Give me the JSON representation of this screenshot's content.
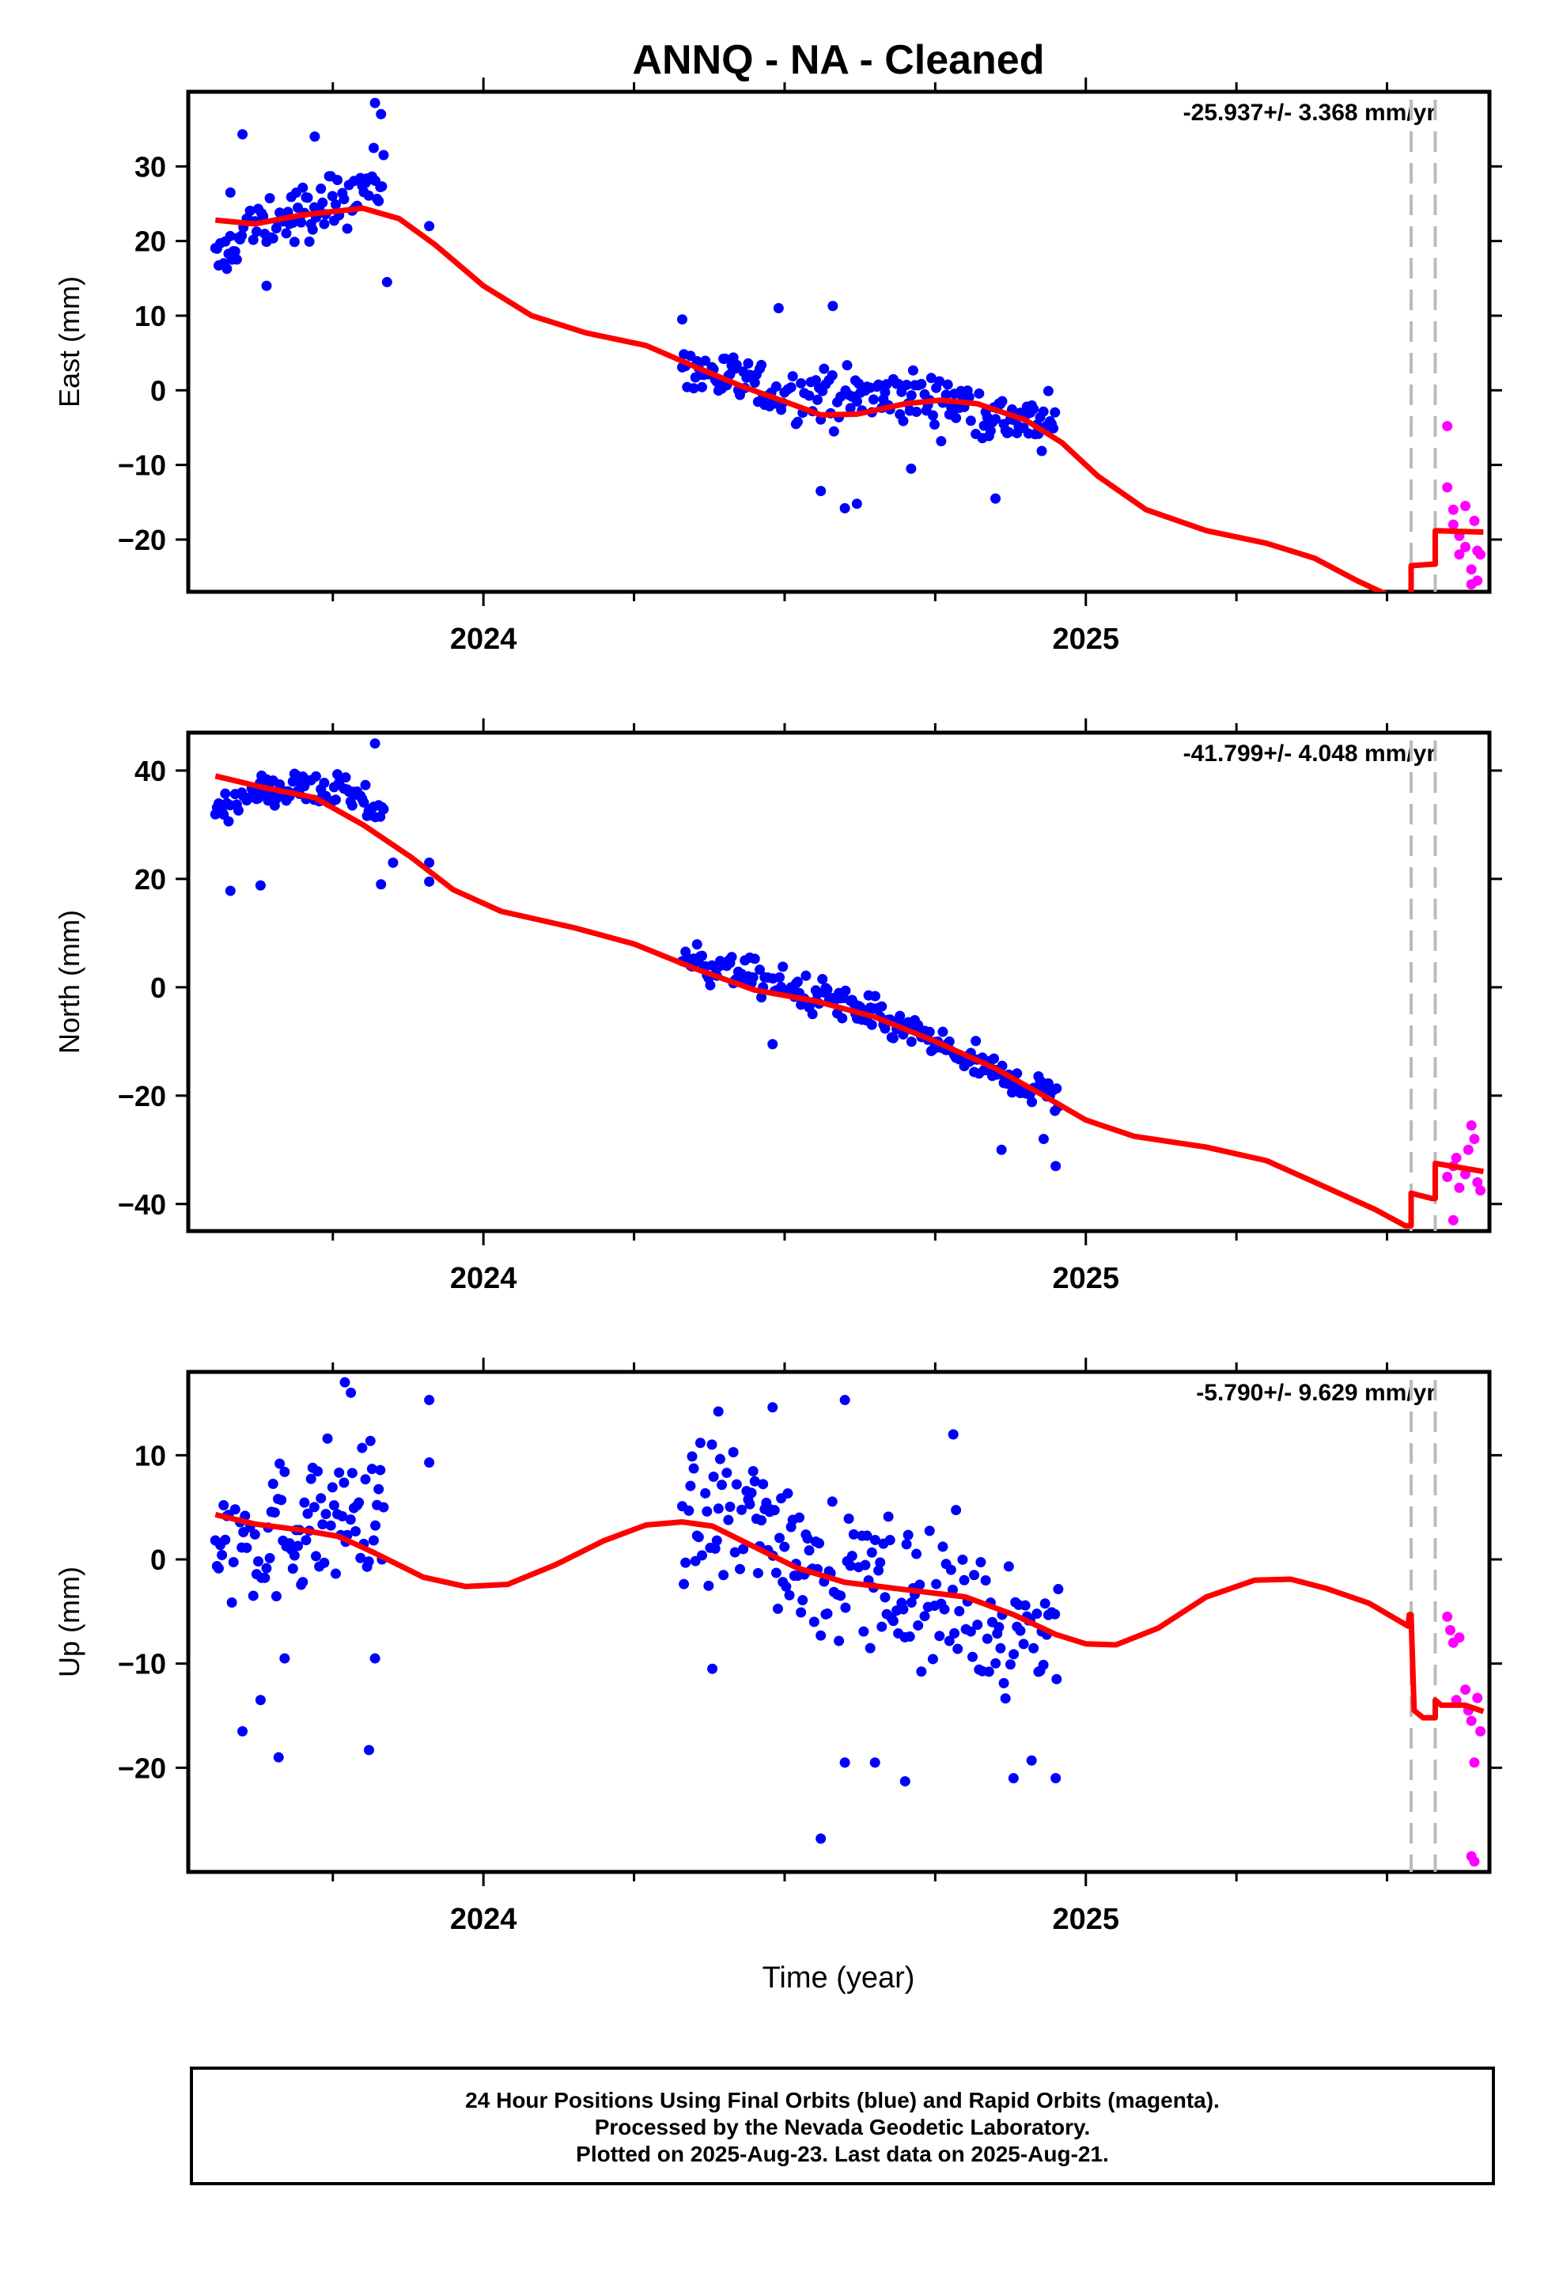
{
  "title": "ANNQ  - NA - Cleaned",
  "xlabel": "Time (year)",
  "colors": {
    "final": "#0000ff",
    "rapid": "#ff00ff",
    "model": "#ff0000",
    "break": "#bbbbbb"
  },
  "footer": {
    "line1": "24 Hour Positions Using Final Orbits (blue) and Rapid Orbits (magenta).",
    "line2": "Processed by the Nevada Geodetic Laboratory.",
    "line3": "Plotted on 2025-Aug-23. Last data on 2025-Aug-21."
  },
  "chart_data": [
    {
      "type": "scatter",
      "component": "East",
      "ylabel": "East (mm)",
      "rate": "-25.937+/- 3.368 mm/yr",
      "xlim": [
        2023.51,
        2025.67
      ],
      "ylim": [
        -27,
        40
      ],
      "xticks": [
        2024,
        2025
      ],
      "yticks": [
        -20,
        -10,
        0,
        10,
        20,
        30
      ],
      "breaks": [
        2025.54,
        2025.58
      ],
      "final_segments": [
        {
          "t0": 2023.555,
          "t1": 2023.835,
          "pts": [
            [
              2023.56,
              17
            ],
            [
              2023.6,
              21
            ],
            [
              2023.65,
              22.5
            ],
            [
              2023.7,
              23.5
            ],
            [
              2023.75,
              25
            ],
            [
              2023.8,
              27.5
            ],
            [
              2023.83,
              28
            ]
          ],
          "spread": 3.5
        },
        {
          "t0": 2024.33,
          "t1": 2024.955,
          "pts": [
            [
              2024.33,
              4
            ],
            [
              2024.4,
              1.5
            ],
            [
              2024.5,
              -0.5
            ],
            [
              2024.6,
              -1
            ],
            [
              2024.7,
              -1
            ],
            [
              2024.8,
              -2
            ],
            [
              2024.87,
              -4
            ],
            [
              2024.955,
              -5
            ]
          ],
          "spread": 3.2
        }
      ],
      "final_outliers": [
        [
          2023.6,
          34.3
        ],
        [
          2023.72,
          34
        ],
        [
          2023.82,
          38.5
        ],
        [
          2023.83,
          37
        ],
        [
          2023.84,
          14.5
        ],
        [
          2023.91,
          22
        ],
        [
          2023.58,
          26.5
        ],
        [
          2023.64,
          14
        ],
        [
          2024.33,
          9.5
        ],
        [
          2024.49,
          11
        ],
        [
          2024.58,
          11.3
        ],
        [
          2024.6,
          -15.8
        ],
        [
          2024.62,
          -15.2
        ],
        [
          2024.56,
          -13.5
        ],
        [
          2024.85,
          -14.5
        ],
        [
          2024.71,
          -10.5
        ]
      ],
      "rapid": [
        [
          2025.6,
          -4.8
        ],
        [
          2025.6,
          -13
        ],
        [
          2025.61,
          -16
        ],
        [
          2025.61,
          -18
        ],
        [
          2025.62,
          -22
        ],
        [
          2025.62,
          -19.5
        ],
        [
          2025.63,
          -15.5
        ],
        [
          2025.63,
          -21
        ],
        [
          2025.64,
          -24
        ],
        [
          2025.64,
          -26
        ],
        [
          2025.645,
          -17.5
        ],
        [
          2025.65,
          -21.5
        ],
        [
          2025.65,
          -25.5
        ],
        [
          2025.655,
          -22
        ]
      ],
      "model": [
        [
          2023.555,
          22.8
        ],
        [
          2023.62,
          22.3
        ],
        [
          2023.7,
          23.5
        ],
        [
          2023.8,
          24.4
        ],
        [
          2023.86,
          23
        ],
        [
          2023.92,
          19.5
        ],
        [
          2024.0,
          14
        ],
        [
          2024.08,
          10
        ],
        [
          2024.17,
          7.7
        ],
        [
          2024.27,
          6
        ],
        [
          2024.35,
          3.2
        ],
        [
          2024.43,
          0.5
        ],
        [
          2024.5,
          -1.5
        ],
        [
          2024.56,
          -3.3
        ],
        [
          2024.62,
          -3.2
        ],
        [
          2024.7,
          -1.8
        ],
        [
          2024.76,
          -1.3
        ],
        [
          2024.82,
          -1.8
        ],
        [
          2024.9,
          -4
        ],
        [
          2024.96,
          -7
        ],
        [
          2025.02,
          -11.5
        ],
        [
          2025.1,
          -16
        ],
        [
          2025.2,
          -18.8
        ],
        [
          2025.3,
          -20.5
        ],
        [
          2025.38,
          -22.5
        ],
        [
          2025.45,
          -25.5
        ],
        [
          2025.53,
          -28.5
        ]
      ],
      "model_after_break1": [
        [
          2025.54,
          -23.5
        ],
        [
          2025.575,
          -23.3
        ]
      ],
      "model_after_break2": [
        [
          2025.58,
          -18.8
        ],
        [
          2025.66,
          -19
        ]
      ]
    },
    {
      "type": "scatter",
      "component": "North",
      "ylabel": "North (mm)",
      "rate": "-41.799+/- 4.048 mm/yr",
      "xlim": [
        2023.51,
        2025.67
      ],
      "ylim": [
        -45,
        47
      ],
      "xticks": [
        2024,
        2025
      ],
      "yticks": [
        -40,
        -20,
        0,
        20,
        40
      ],
      "breaks": [
        2025.54,
        2025.58
      ],
      "final_segments": [
        {
          "t0": 2023.555,
          "t1": 2023.835,
          "pts": [
            [
              2023.56,
              33
            ],
            [
              2023.62,
              36
            ],
            [
              2023.7,
              37
            ],
            [
              2023.76,
              36
            ],
            [
              2023.82,
              33
            ]
          ],
          "spread": 2.8
        },
        {
          "t0": 2024.33,
          "t1": 2024.955,
          "pts": [
            [
              2024.33,
              5.5
            ],
            [
              2024.4,
              3.5
            ],
            [
              2024.5,
              0
            ],
            [
              2024.6,
              -3
            ],
            [
              2024.7,
              -8
            ],
            [
              2024.8,
              -13
            ],
            [
              2024.87,
              -17
            ],
            [
              2024.955,
              -20
            ]
          ],
          "spread": 3
        }
      ],
      "final_outliers": [
        [
          2023.58,
          17.8
        ],
        [
          2023.63,
          18.8
        ],
        [
          2023.82,
          45
        ],
        [
          2023.83,
          19
        ],
        [
          2023.85,
          23
        ],
        [
          2023.91,
          19.5
        ],
        [
          2023.91,
          23
        ],
        [
          2024.48,
          -10.5
        ],
        [
          2024.86,
          -30
        ],
        [
          2024.95,
          -33
        ],
        [
          2024.93,
          -28
        ]
      ],
      "rapid": [
        [
          2025.6,
          -35
        ],
        [
          2025.61,
          -33
        ],
        [
          2025.615,
          -31.5
        ],
        [
          2025.62,
          -37
        ],
        [
          2025.63,
          -34.5
        ],
        [
          2025.635,
          -30
        ],
        [
          2025.64,
          -25.5
        ],
        [
          2025.645,
          -28
        ],
        [
          2025.65,
          -36
        ],
        [
          2025.655,
          -37.5
        ],
        [
          2025.61,
          -43
        ]
      ],
      "model": [
        [
          2023.555,
          39
        ],
        [
          2023.63,
          37
        ],
        [
          2023.72,
          35
        ],
        [
          2023.8,
          30
        ],
        [
          2023.88,
          24
        ],
        [
          2023.95,
          18
        ],
        [
          2024.03,
          14
        ],
        [
          2024.15,
          11
        ],
        [
          2024.25,
          8
        ],
        [
          2024.35,
          3.5
        ],
        [
          2024.45,
          -0.5
        ],
        [
          2024.55,
          -2.5
        ],
        [
          2024.65,
          -5.5
        ],
        [
          2024.75,
          -10
        ],
        [
          2024.85,
          -15
        ],
        [
          2024.93,
          -20
        ],
        [
          2025.0,
          -24.5
        ],
        [
          2025.08,
          -27.5
        ],
        [
          2025.2,
          -29.5
        ],
        [
          2025.3,
          -32
        ],
        [
          2025.4,
          -37
        ],
        [
          2025.48,
          -41
        ],
        [
          2025.53,
          -44
        ]
      ],
      "model_after_break1": [
        [
          2025.54,
          -38
        ],
        [
          2025.575,
          -39
        ]
      ],
      "model_after_break2": [
        [
          2025.58,
          -32.5
        ],
        [
          2025.66,
          -34
        ]
      ]
    },
    {
      "type": "scatter",
      "component": "Up",
      "ylabel": "Up (mm)",
      "rate": "-5.790+/- 9.629 mm/yr",
      "xlim": [
        2023.51,
        2025.67
      ],
      "ylim": [
        -30,
        18
      ],
      "xticks": [
        2024,
        2025
      ],
      "yticks": [
        -20,
        -10,
        0,
        10
      ],
      "breaks": [
        2025.54,
        2025.58
      ],
      "final_segments": [
        {
          "t0": 2023.555,
          "t1": 2023.835,
          "pts": [
            [
              2023.56,
              1
            ],
            [
              2023.65,
              2.5
            ],
            [
              2023.72,
              4
            ],
            [
              2023.8,
              5
            ],
            [
              2023.835,
              5
            ]
          ],
          "spread": 6
        },
        {
          "t0": 2024.33,
          "t1": 2024.955,
          "pts": [
            [
              2024.33,
              4
            ],
            [
              2024.45,
              4
            ],
            [
              2024.55,
              0
            ],
            [
              2024.65,
              -2
            ],
            [
              2024.75,
              -4
            ],
            [
              2024.85,
              -6
            ],
            [
              2024.955,
              -7
            ]
          ],
          "spread": 6.5
        }
      ],
      "final_outliers": [
        [
          2023.6,
          -16.5
        ],
        [
          2023.63,
          -13.5
        ],
        [
          2023.66,
          -19
        ],
        [
          2023.67,
          -9.5
        ],
        [
          2023.77,
          17
        ],
        [
          2023.78,
          16
        ],
        [
          2023.81,
          -18.3
        ],
        [
          2023.82,
          -9.5
        ],
        [
          2023.91,
          15.3
        ],
        [
          2023.91,
          9.3
        ],
        [
          2024.38,
          -10.5
        ],
        [
          2024.56,
          -26.8
        ],
        [
          2024.6,
          -19.5
        ],
        [
          2024.65,
          -19.5
        ],
        [
          2024.7,
          -21.3
        ],
        [
          2024.6,
          15.3
        ],
        [
          2024.78,
          12
        ],
        [
          2024.88,
          -21
        ],
        [
          2024.95,
          -21
        ],
        [
          2024.91,
          -19.3
        ],
        [
          2024.39,
          14.2
        ],
        [
          2024.48,
          14.6
        ]
      ],
      "rapid": [
        [
          2025.6,
          -5.5
        ],
        [
          2025.605,
          -6.8
        ],
        [
          2025.61,
          -8
        ],
        [
          2025.615,
          -13.5
        ],
        [
          2025.62,
          -7.5
        ],
        [
          2025.63,
          -12.5
        ],
        [
          2025.635,
          -14.5
        ],
        [
          2025.64,
          -15.5
        ],
        [
          2025.645,
          -19.5
        ],
        [
          2025.65,
          -13.3
        ],
        [
          2025.655,
          -16.5
        ],
        [
          2025.64,
          -28.5
        ],
        [
          2025.645,
          -29
        ]
      ],
      "model": [
        [
          2023.555,
          4.3
        ],
        [
          2023.62,
          3.4
        ],
        [
          2023.7,
          2.8
        ],
        [
          2023.76,
          2.2
        ],
        [
          2023.82,
          0.6
        ],
        [
          2023.9,
          -1.7
        ],
        [
          2023.97,
          -2.6
        ],
        [
          2024.04,
          -2.4
        ],
        [
          2024.12,
          -0.5
        ],
        [
          2024.2,
          1.8
        ],
        [
          2024.27,
          3.3
        ],
        [
          2024.33,
          3.6
        ],
        [
          2024.38,
          3.2
        ],
        [
          2024.45,
          1.2
        ],
        [
          2024.52,
          -0.8
        ],
        [
          2024.6,
          -2.2
        ],
        [
          2024.7,
          -2.9
        ],
        [
          2024.8,
          -3.6
        ],
        [
          2024.88,
          -5.3
        ],
        [
          2024.95,
          -7.2
        ],
        [
          2025.0,
          -8.1
        ],
        [
          2025.05,
          -8.2
        ],
        [
          2025.12,
          -6.6
        ],
        [
          2025.2,
          -3.6
        ],
        [
          2025.28,
          -2
        ],
        [
          2025.34,
          -1.9
        ],
        [
          2025.4,
          -2.8
        ],
        [
          2025.47,
          -4.2
        ],
        [
          2025.535,
          -6.4
        ],
        [
          2025.537,
          -5.3
        ]
      ],
      "model_after_break1": [
        [
          2025.54,
          -5.5
        ],
        [
          2025.545,
          -14.5
        ],
        [
          2025.56,
          -15.2
        ],
        [
          2025.575,
          -15.2
        ]
      ],
      "model_after_break2": [
        [
          2025.58,
          -13.5
        ],
        [
          2025.59,
          -14
        ],
        [
          2025.63,
          -14
        ],
        [
          2025.66,
          -14.6
        ]
      ]
    }
  ]
}
